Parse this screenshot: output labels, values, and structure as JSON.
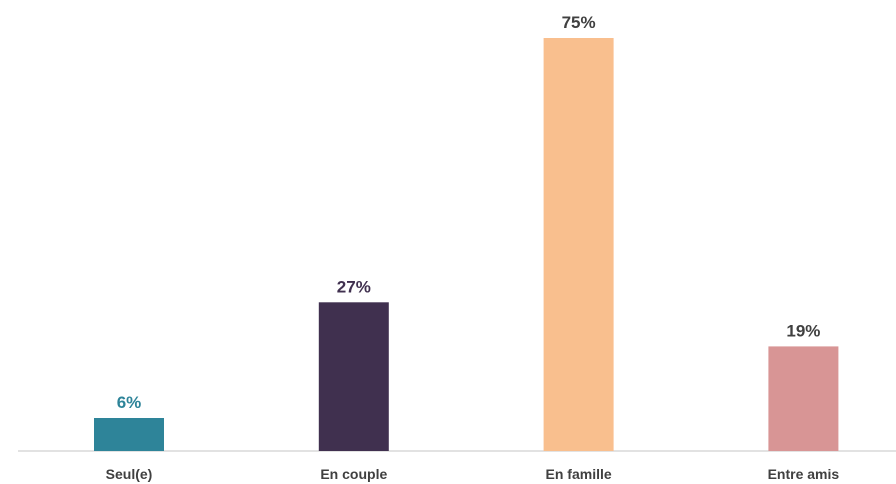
{
  "chart_data": {
    "type": "bar",
    "categories": [
      "Seul(e)",
      "En couple",
      "En famille",
      "Entre amis"
    ],
    "values": [
      6,
      27,
      75,
      19
    ],
    "value_labels": [
      "6%",
      "27%",
      "75%",
      "19%"
    ],
    "unit": "%",
    "ylim": [
      0,
      75
    ],
    "grid": false,
    "legend": "none",
    "colors": [
      "#2e8499",
      "#40304f",
      "#f9bf8e",
      "#d89595"
    ],
    "label_colors": [
      "#2e8499",
      "#40304f",
      "#404040",
      "#404040"
    ],
    "baseline_color": "#d9d9d9"
  }
}
